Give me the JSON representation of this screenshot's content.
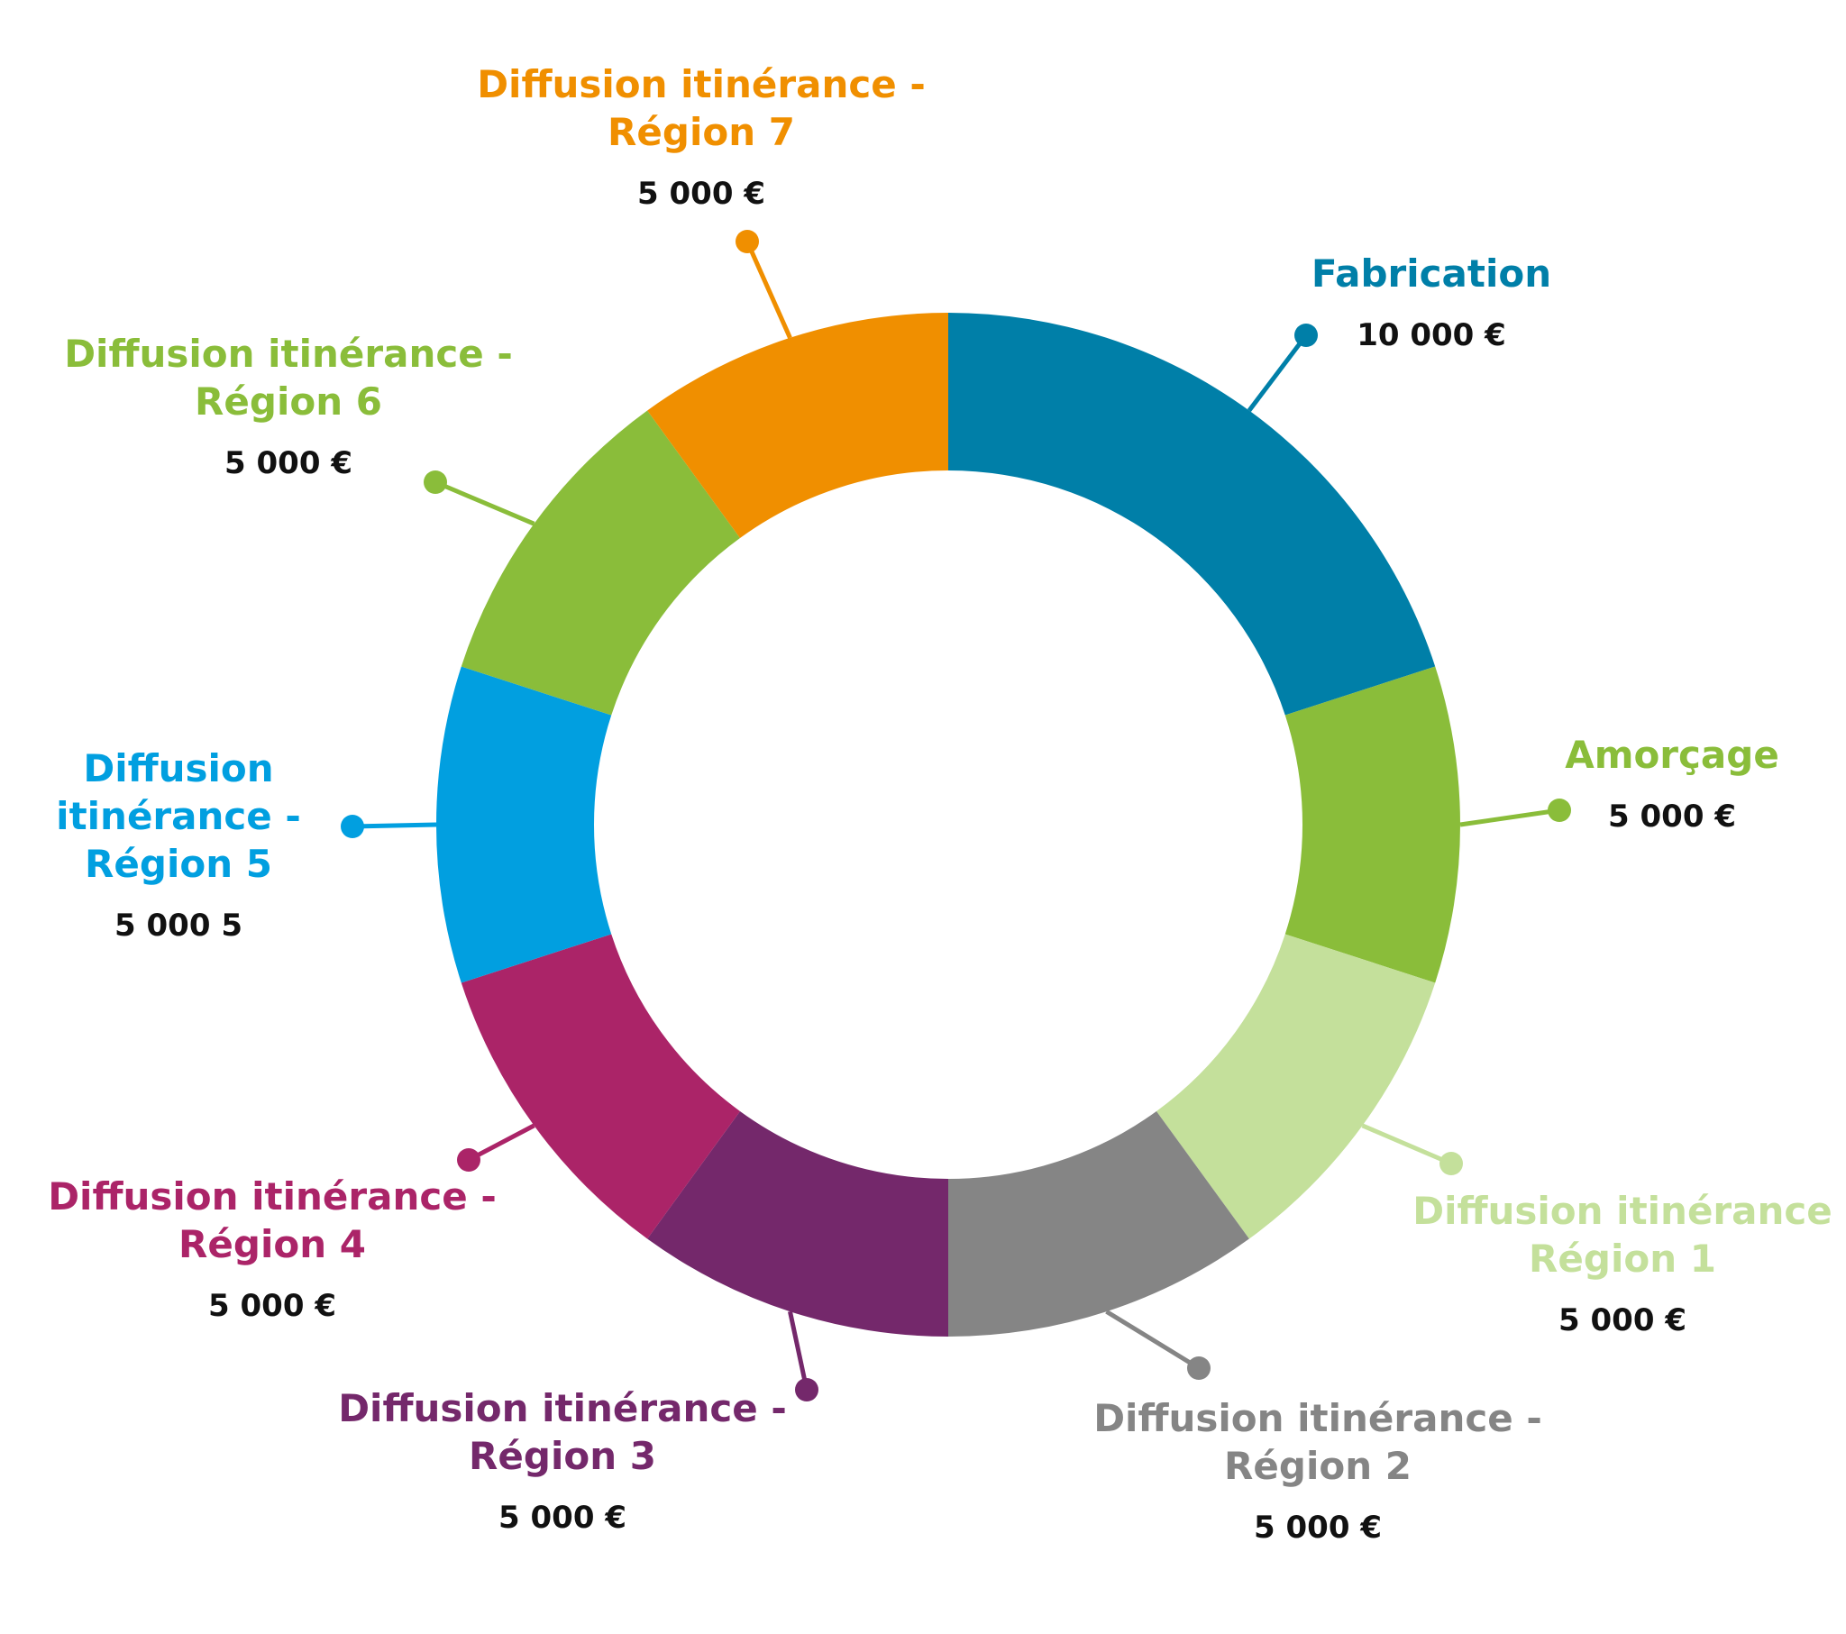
{
  "chart_data": {
    "type": "pie",
    "title": "",
    "slices": [
      {
        "label": "Fabrication",
        "display_value": "10 000 €",
        "value": 10000,
        "color": "#007FA8"
      },
      {
        "label": "Amorçage",
        "display_value": "5 000 €",
        "value": 5000,
        "color": "#8ABD3A"
      },
      {
        "label": "Diffusion itinérance Région 1",
        "display_value": "5 000 €",
        "value": 5000,
        "color": "#C4E09B"
      },
      {
        "label": "Diffusion itinérance - Région 2",
        "display_value": "5 000 €",
        "value": 5000,
        "color": "#858585"
      },
      {
        "label": "Diffusion itinérance - Région 3",
        "display_value": "5 000 €",
        "value": 5000,
        "color": "#74286B"
      },
      {
        "label": "Diffusion itinérance - Région 4",
        "display_value": "5 000 €",
        "value": 5000,
        "color": "#AB2468"
      },
      {
        "label": "Diffusion itinérance - Région 5",
        "display_value": "5 000 5",
        "value": 5000,
        "color": "#019FE0"
      },
      {
        "label": "Diffusion itinérance - Région 6",
        "display_value": "5 000 €",
        "value": 5000,
        "color": "#8ABD3A"
      },
      {
        "label": "Diffusion itinérance - Région 7",
        "display_value": "5 000 €",
        "value": 5000,
        "color": "#F08F00"
      }
    ]
  }
}
